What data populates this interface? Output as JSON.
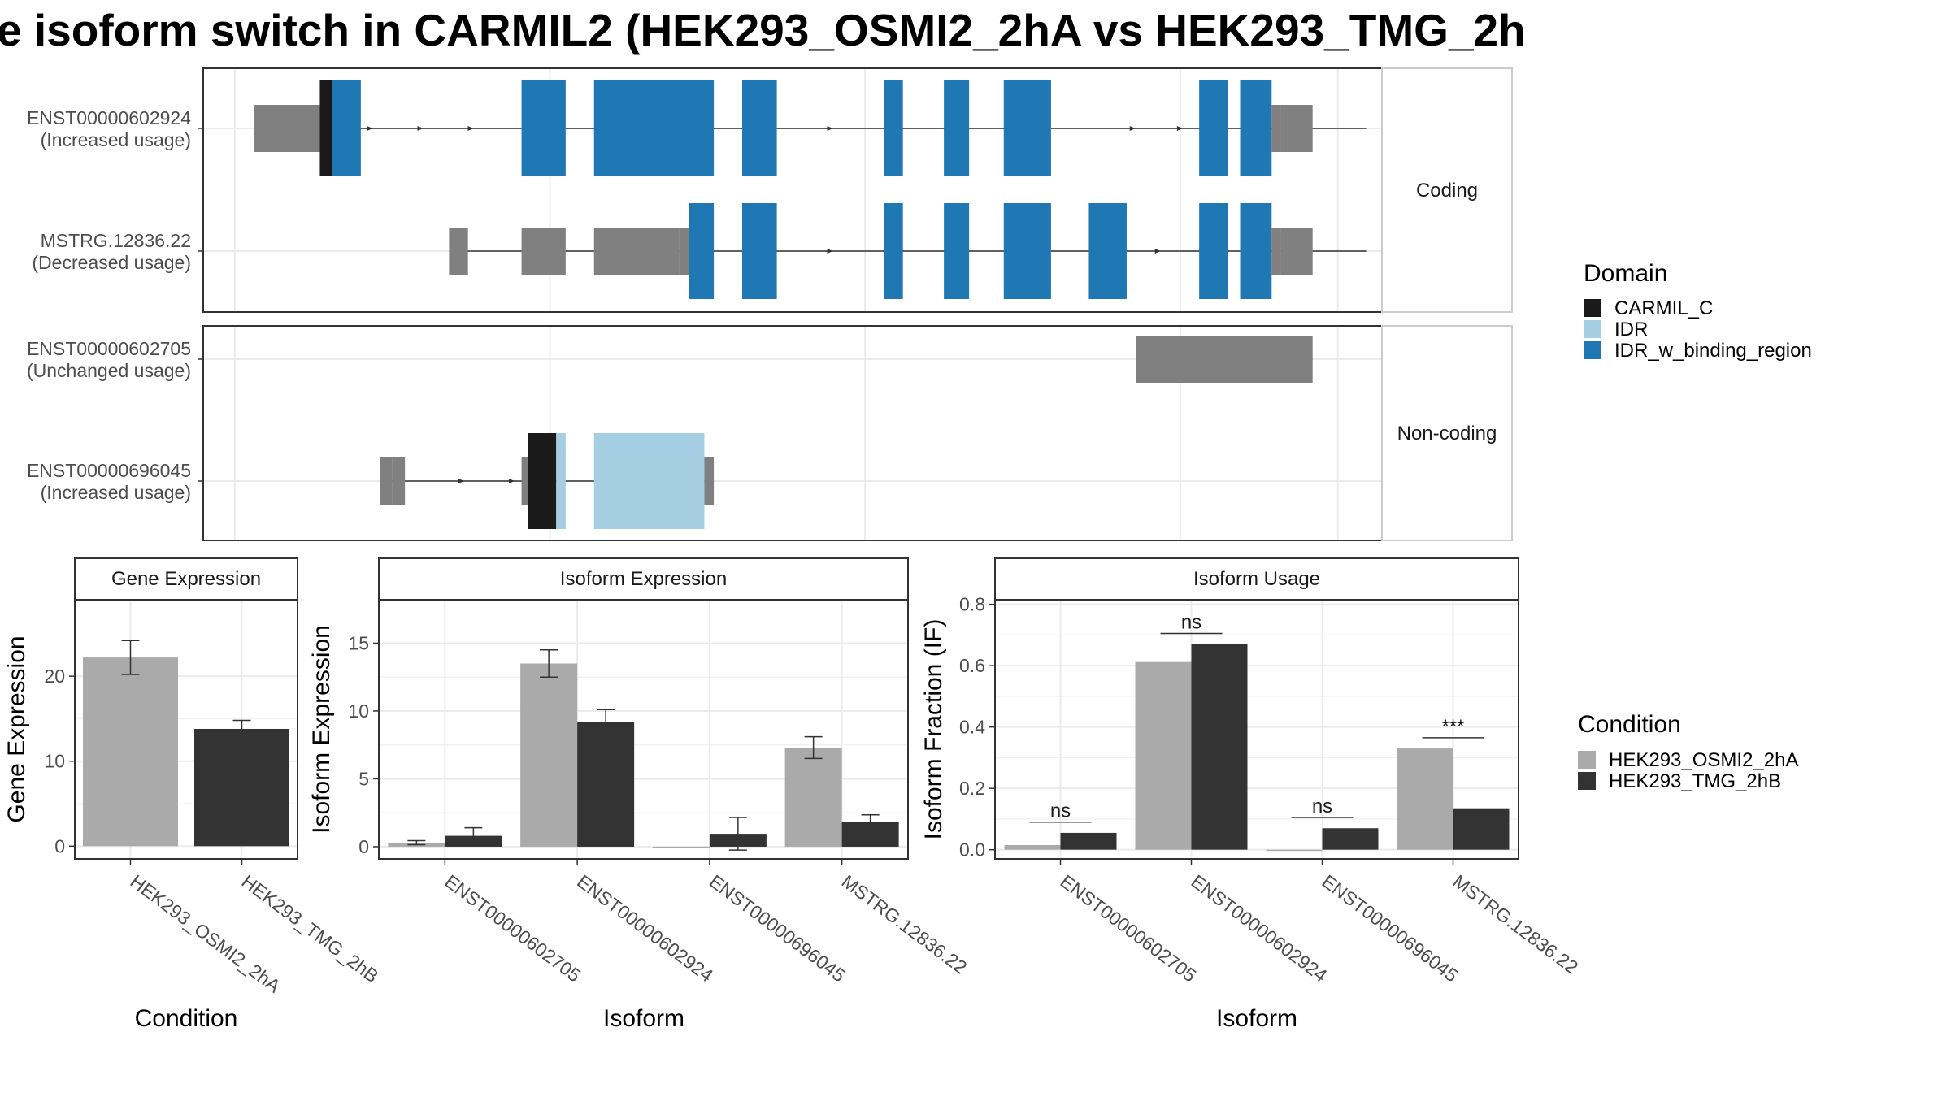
{
  "title": "e isoform switch in CARMIL2 (HEK293_OSMI2_2hA vs HEK293_TMG_2h",
  "colors": {
    "utr": "#808080",
    "CARMIL_C": "#1a1a1a",
    "IDR": "#a6cee3",
    "IDR_w_binding_region": "#1f78b4",
    "cond_a": "#aaaaaa",
    "cond_b": "#333333"
  },
  "domain_legend": {
    "title": "Domain",
    "items": [
      {
        "label": "CARMIL_C",
        "color_key": "CARMIL_C"
      },
      {
        "label": "IDR",
        "color_key": "IDR"
      },
      {
        "label": "IDR_w_binding_region",
        "color_key": "IDR_w_binding_region"
      }
    ]
  },
  "condition_legend": {
    "title": "Condition",
    "items": [
      {
        "label": "HEK293_OSMI2_2hA",
        "color_key": "cond_a"
      },
      {
        "label": "HEK293_TMG_2hB",
        "color_key": "cond_b"
      }
    ]
  },
  "structure": {
    "facets": [
      {
        "strip": "Coding",
        "isoforms": [
          {
            "line1": "ENST00000602924",
            "line2": "(Increased usage)",
            "span": [
              0.6,
              35.9
            ],
            "arrows": [
              4.3,
              5.9,
              7.5,
              18.9,
              28.5,
              30.0
            ],
            "exons": [
              {
                "s": 0.6,
                "e": 2.7,
                "type": "utr"
              },
              {
                "s": 2.7,
                "e": 3.1,
                "type": "CARMIL_C"
              },
              {
                "s": 3.1,
                "e": 4.0,
                "type": "IDR_w_binding_region"
              },
              {
                "s": 9.1,
                "e": 10.5,
                "type": "IDR_w_binding_region"
              },
              {
                "s": 11.4,
                "e": 15.2,
                "type": "IDR_w_binding_region"
              },
              {
                "s": 16.1,
                "e": 17.2,
                "type": "IDR_w_binding_region"
              },
              {
                "s": 20.6,
                "e": 21.2,
                "type": "IDR_w_binding_region"
              },
              {
                "s": 22.5,
                "e": 23.3,
                "type": "IDR_w_binding_region"
              },
              {
                "s": 24.4,
                "e": 25.9,
                "type": "IDR_w_binding_region"
              },
              {
                "s": 30.6,
                "e": 31.5,
                "type": "IDR_w_binding_region"
              },
              {
                "s": 31.9,
                "e": 32.9,
                "type": "IDR_w_binding_region"
              },
              {
                "s": 32.9,
                "e": 33.2,
                "type": "utr"
              },
              {
                "s": 33.2,
                "e": 34.2,
                "type": "utr"
              }
            ]
          },
          {
            "line1": "MSTRG.12836.22",
            "line2": "(Decreased usage)",
            "span": [
              6.8,
              35.9
            ],
            "arrows": [
              18.9,
              29.3
            ],
            "exons": [
              {
                "s": 6.8,
                "e": 7.4,
                "type": "utr"
              },
              {
                "s": 9.1,
                "e": 10.5,
                "type": "utr"
              },
              {
                "s": 11.4,
                "e": 14.1,
                "type": "utr"
              },
              {
                "s": 14.1,
                "e": 14.4,
                "type": "utr"
              },
              {
                "s": 14.4,
                "e": 15.2,
                "type": "IDR_w_binding_region"
              },
              {
                "s": 16.1,
                "e": 17.2,
                "type": "IDR_w_binding_region"
              },
              {
                "s": 20.6,
                "e": 21.2,
                "type": "IDR_w_binding_region"
              },
              {
                "s": 22.5,
                "e": 23.3,
                "type": "IDR_w_binding_region"
              },
              {
                "s": 24.4,
                "e": 25.9,
                "type": "IDR_w_binding_region"
              },
              {
                "s": 27.1,
                "e": 28.3,
                "type": "IDR_w_binding_region"
              },
              {
                "s": 30.6,
                "e": 31.5,
                "type": "IDR_w_binding_region"
              },
              {
                "s": 31.9,
                "e": 32.9,
                "type": "IDR_w_binding_region"
              },
              {
                "s": 32.9,
                "e": 33.2,
                "type": "utr"
              },
              {
                "s": 33.2,
                "e": 34.2,
                "type": "utr"
              }
            ]
          }
        ]
      },
      {
        "strip": "Non-coding",
        "isoforms": [
          {
            "line1": "ENST00000602705",
            "line2": "(Unchanged usage)",
            "span": [
              28.6,
              34.2
            ],
            "arrows": [],
            "exons": [
              {
                "s": 28.6,
                "e": 32.0,
                "type": "utr"
              },
              {
                "s": 31.9,
                "e": 34.2,
                "type": "utr"
              }
            ]
          },
          {
            "line1": "ENST00000696045",
            "line2": "(Increased usage)",
            "span": [
              4.6,
              15.2
            ],
            "arrows": [
              7.2,
              8.8
            ],
            "exons": [
              {
                "s": 4.6,
                "e": 5.0,
                "type": "utr"
              },
              {
                "s": 5.0,
                "e": 5.4,
                "type": "utr"
              },
              {
                "s": 9.1,
                "e": 9.3,
                "type": "utr"
              },
              {
                "s": 9.3,
                "e": 10.2,
                "type": "CARMIL_C"
              },
              {
                "s": 10.2,
                "e": 10.5,
                "type": "IDR"
              },
              {
                "s": 11.4,
                "e": 14.9,
                "type": "IDR"
              },
              {
                "s": 14.9,
                "e": 15.2,
                "type": "utr"
              }
            ]
          }
        ]
      }
    ]
  },
  "chart_data": [
    {
      "type": "bar",
      "title": "Gene Expression",
      "xlabel": "Condition",
      "ylabel": "Gene Expression",
      "categories": [
        "HEK293_OSMI2_2hA",
        "HEK293_TMG_2hB"
      ],
      "series": [
        {
          "name": "HEK293_OSMI2_2hA",
          "values": [
            22.2,
            null
          ],
          "err": [
            2.0,
            null
          ]
        },
        {
          "name": "HEK293_TMG_2hB",
          "values": [
            null,
            13.8
          ],
          "err": [
            null,
            1.0
          ]
        }
      ],
      "ylim": [
        -1.5,
        29
      ],
      "yticks": [
        0,
        10,
        20
      ]
    },
    {
      "type": "bar",
      "title": "Isoform Expression",
      "xlabel": "Isoform",
      "ylabel": "Isoform Expression",
      "categories": [
        "ENST00000602705",
        "ENST00000602924",
        "ENST00000696045",
        "MSTRG.12836.22"
      ],
      "series": [
        {
          "name": "HEK293_OSMI2_2hA",
          "values": [
            0.3,
            13.5,
            0.0,
            7.3
          ],
          "err": [
            0.15,
            1.0,
            0.0,
            0.8
          ]
        },
        {
          "name": "HEK293_TMG_2hB",
          "values": [
            0.8,
            9.2,
            0.95,
            1.8
          ],
          "err": [
            0.6,
            0.9,
            1.2,
            0.55
          ]
        }
      ],
      "ylim": [
        -0.9,
        18.2
      ],
      "yticks": [
        0,
        5,
        10,
        15
      ]
    },
    {
      "type": "bar",
      "title": "Isoform Usage",
      "xlabel": "Isoform",
      "ylabel": "Isoform Fraction (IF)",
      "categories": [
        "ENST00000602705",
        "ENST00000602924",
        "ENST00000696045",
        "MSTRG.12836.22"
      ],
      "series": [
        {
          "name": "HEK293_OSMI2_2hA",
          "values": [
            0.015,
            0.612,
            0.0,
            0.33
          ]
        },
        {
          "name": "HEK293_TMG_2hB",
          "values": [
            0.055,
            0.67,
            0.07,
            0.135
          ]
        }
      ],
      "significance": [
        {
          "label": "ns",
          "y": 0.09
        },
        {
          "label": "ns",
          "y": 0.705
        },
        {
          "label": "ns",
          "y": 0.105
        },
        {
          "label": "***",
          "y": 0.365
        }
      ],
      "ylim": [
        -0.03,
        0.815
      ],
      "yticks": [
        0.0,
        0.2,
        0.4,
        0.6,
        0.8
      ],
      "ytick_labels": [
        "0.0",
        "0.2",
        "0.4",
        "0.6",
        "0.8"
      ]
    }
  ]
}
